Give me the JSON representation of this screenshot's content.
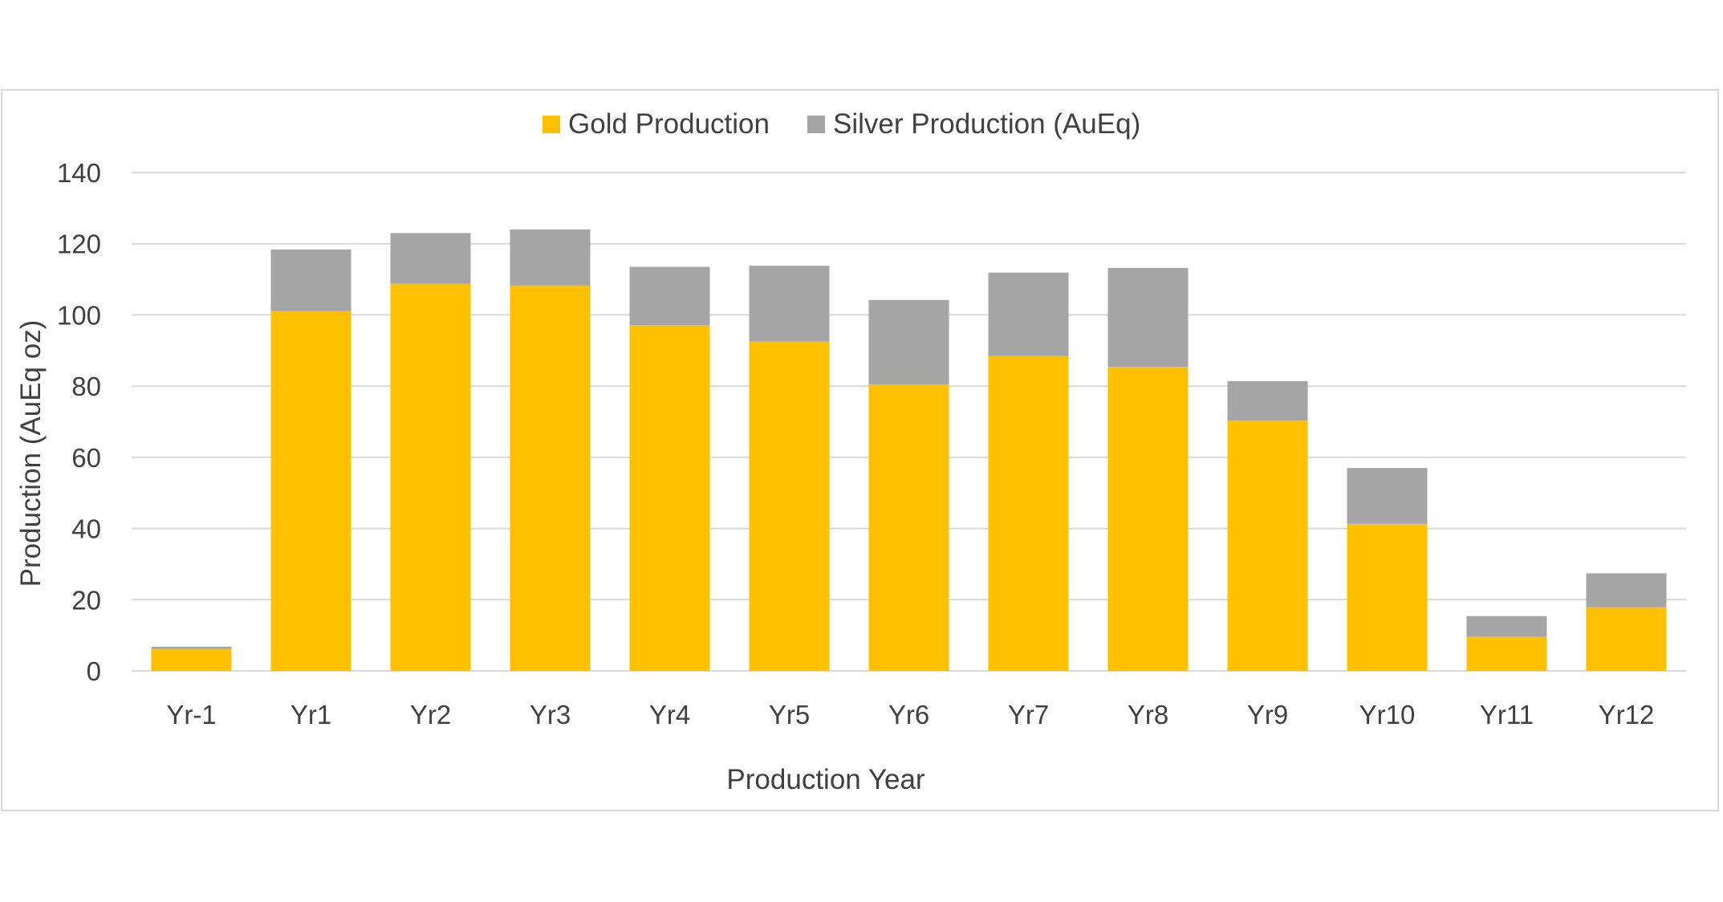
{
  "chart_data": {
    "type": "bar",
    "stacked": true,
    "title": "",
    "xlabel": "Production Year",
    "ylabel": "Production (AuEq oz)",
    "ylim": [
      0,
      140
    ],
    "yticks": [
      0,
      20,
      40,
      60,
      80,
      100,
      120,
      140
    ],
    "grid": true,
    "legend_position": "top",
    "categories": [
      "Yr-1",
      "Yr1",
      "Yr2",
      "Yr3",
      "Yr4",
      "Yr5",
      "Yr6",
      "Yr7",
      "Yr8",
      "Yr9",
      "Yr10",
      "Yr11",
      "Yr12"
    ],
    "series": [
      {
        "name": "Gold Production",
        "color": "#FFC000",
        "values": [
          6.2,
          101.1,
          108.8,
          108.2,
          97.1,
          92.5,
          80.5,
          88.5,
          85.4,
          70.3,
          41.3,
          9.6,
          17.9
        ]
      },
      {
        "name": "Silver Production (AuEq)",
        "color": "#A5A5A5",
        "values": [
          0.6,
          17.3,
          14.2,
          15.8,
          16.4,
          21.3,
          23.7,
          23.4,
          27.8,
          11.1,
          15.7,
          5.8,
          9.5
        ]
      }
    ],
    "gridline_color": "#D9D9D9"
  }
}
